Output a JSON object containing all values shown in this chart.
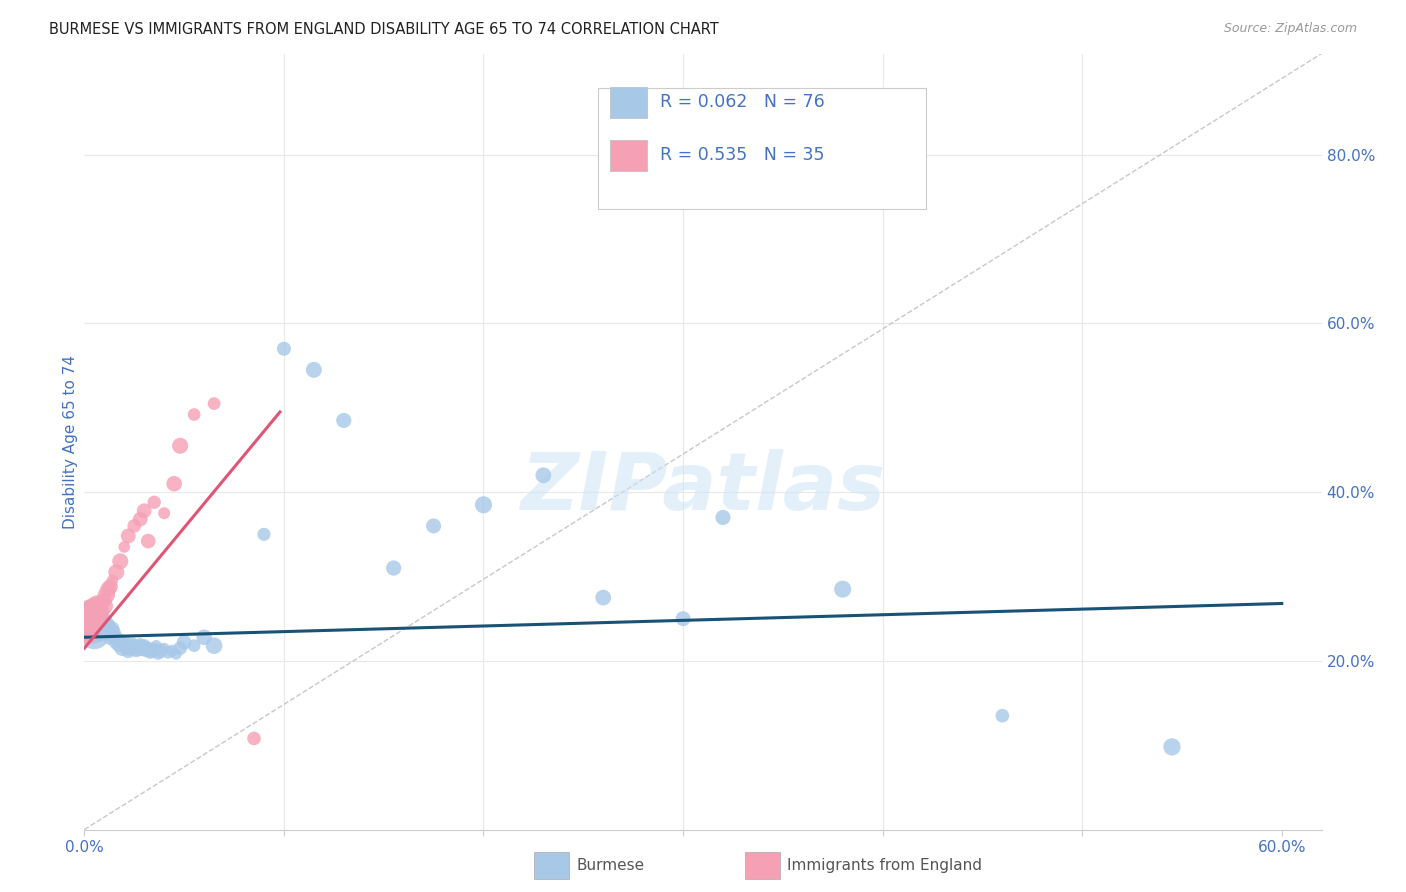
{
  "title": "BURMESE VS IMMIGRANTS FROM ENGLAND DISABILITY AGE 65 TO 74 CORRELATION CHART",
  "source": "Source: ZipAtlas.com",
  "ylabel": "Disability Age 65 to 74",
  "xlim": [
    0.0,
    0.62
  ],
  "ylim": [
    0.0,
    0.92
  ],
  "series1_name": "Burmese",
  "series1_R": "0.062",
  "series1_N": "76",
  "series1_color": "#a8c8e8",
  "series1_line_color": "#1a5276",
  "series2_name": "Immigrants from England",
  "series2_R": "0.535",
  "series2_N": "35",
  "series2_color": "#f5a0b5",
  "series2_line_color": "#e05575",
  "diagonal_color": "#c8c8c8",
  "background_color": "#ffffff",
  "grid_color": "#e8e8e8",
  "legend_text_color": "#4472c4",
  "watermark": "ZIPatlas",
  "burmese_x": [
    0.001,
    0.002,
    0.002,
    0.003,
    0.003,
    0.003,
    0.004,
    0.004,
    0.005,
    0.005,
    0.005,
    0.006,
    0.006,
    0.007,
    0.007,
    0.008,
    0.008,
    0.009,
    0.009,
    0.01,
    0.01,
    0.011,
    0.011,
    0.012,
    0.012,
    0.013,
    0.013,
    0.014,
    0.014,
    0.015,
    0.016,
    0.017,
    0.018,
    0.019,
    0.02,
    0.021,
    0.022,
    0.023,
    0.024,
    0.025,
    0.026,
    0.027,
    0.028,
    0.029,
    0.03,
    0.031,
    0.032,
    0.033,
    0.034,
    0.035,
    0.036,
    0.037,
    0.038,
    0.04,
    0.042,
    0.044,
    0.046,
    0.048,
    0.05,
    0.055,
    0.06,
    0.065,
    0.09,
    0.1,
    0.115,
    0.13,
    0.155,
    0.175,
    0.2,
    0.23,
    0.26,
    0.3,
    0.32,
    0.38,
    0.46,
    0.545
  ],
  "burmese_y": [
    0.25,
    0.255,
    0.248,
    0.24,
    0.245,
    0.252,
    0.238,
    0.242,
    0.232,
    0.245,
    0.252,
    0.238,
    0.245,
    0.242,
    0.248,
    0.235,
    0.242,
    0.24,
    0.248,
    0.238,
    0.245,
    0.232,
    0.24,
    0.238,
    0.242,
    0.235,
    0.228,
    0.232,
    0.238,
    0.228,
    0.222,
    0.218,
    0.225,
    0.215,
    0.222,
    0.218,
    0.212,
    0.215,
    0.22,
    0.218,
    0.212,
    0.215,
    0.22,
    0.215,
    0.218,
    0.212,
    0.215,
    0.21,
    0.212,
    0.215,
    0.218,
    0.21,
    0.212,
    0.215,
    0.21,
    0.212,
    0.208,
    0.215,
    0.222,
    0.218,
    0.228,
    0.218,
    0.35,
    0.57,
    0.545,
    0.485,
    0.31,
    0.36,
    0.385,
    0.42,
    0.275,
    0.25,
    0.37,
    0.285,
    0.135,
    0.098
  ],
  "england_x": [
    0.001,
    0.002,
    0.003,
    0.003,
    0.004,
    0.004,
    0.005,
    0.005,
    0.006,
    0.007,
    0.007,
    0.008,
    0.008,
    0.009,
    0.01,
    0.01,
    0.011,
    0.012,
    0.013,
    0.014,
    0.016,
    0.018,
    0.02,
    0.022,
    0.025,
    0.028,
    0.03,
    0.032,
    0.035,
    0.04,
    0.045,
    0.048,
    0.055,
    0.065,
    0.085
  ],
  "england_y": [
    0.23,
    0.235,
    0.245,
    0.252,
    0.248,
    0.258,
    0.26,
    0.255,
    0.268,
    0.252,
    0.26,
    0.262,
    0.27,
    0.258,
    0.265,
    0.272,
    0.278,
    0.285,
    0.288,
    0.295,
    0.305,
    0.318,
    0.335,
    0.348,
    0.36,
    0.368,
    0.378,
    0.342,
    0.388,
    0.375,
    0.41,
    0.455,
    0.492,
    0.505,
    0.108
  ],
  "burmese_trend_x": [
    0.0,
    0.6
  ],
  "burmese_trend_y": [
    0.228,
    0.268
  ],
  "england_trend_x": [
    0.0,
    0.098
  ],
  "england_trend_y": [
    0.215,
    0.495
  ]
}
